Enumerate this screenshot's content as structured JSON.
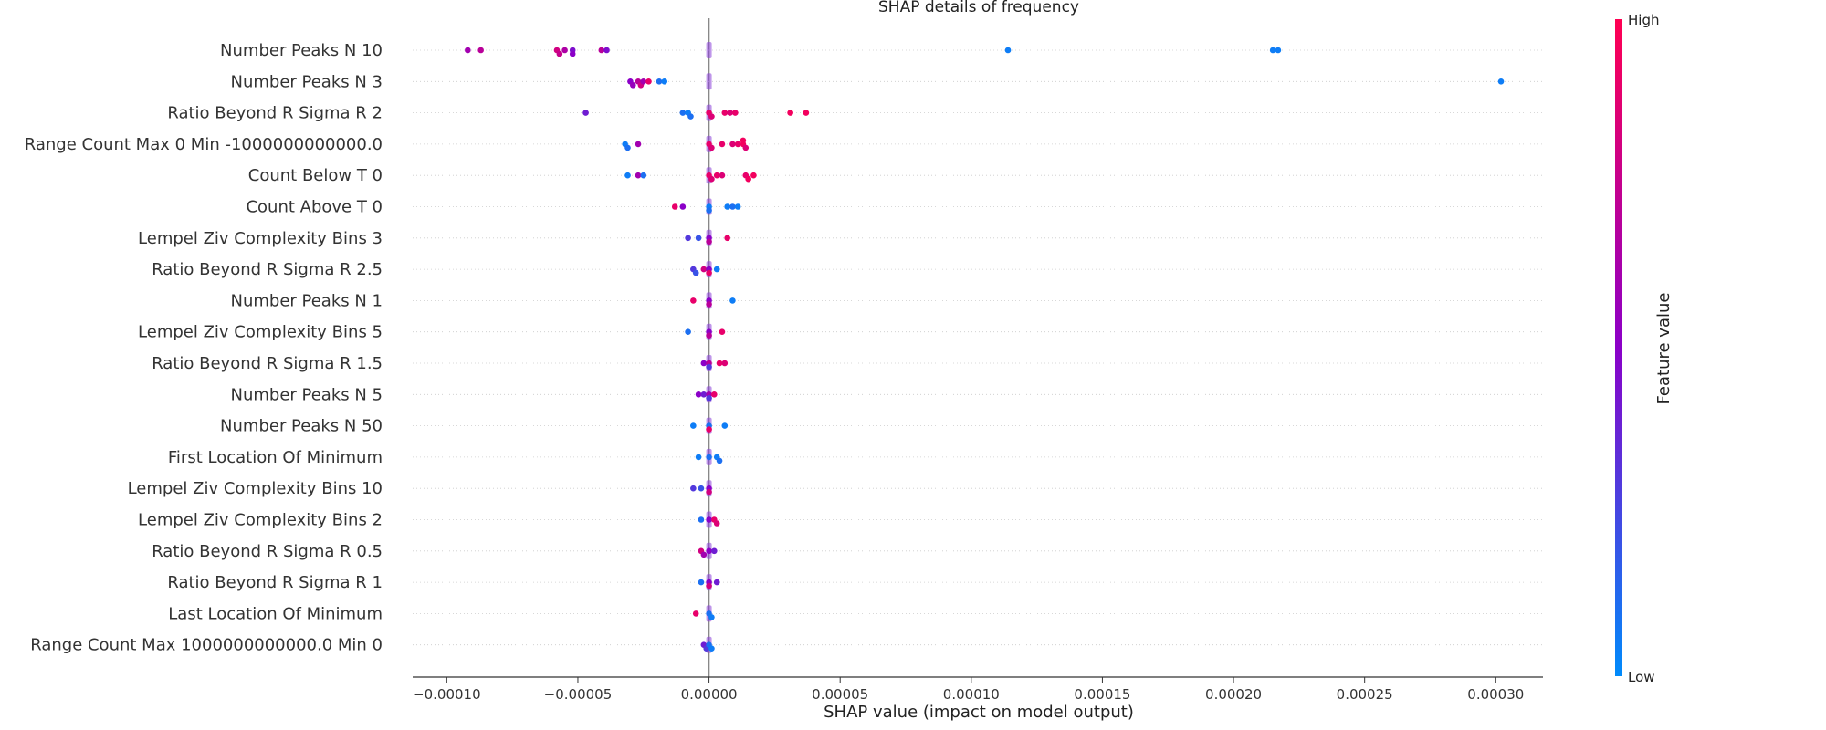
{
  "chart_data": {
    "type": "scatter",
    "title": "SHAP details of frequency",
    "xlabel": "SHAP value (impact on model output)",
    "xlim": [
      -0.000113,
      0.000318
    ],
    "xticks": [
      {
        "value": -0.0001,
        "label": "−0.00010"
      },
      {
        "value": -5e-05,
        "label": "−0.00005"
      },
      {
        "value": 0.0,
        "label": "0.00000"
      },
      {
        "value": 5e-05,
        "label": "0.00005"
      },
      {
        "value": 0.0001,
        "label": "0.00010"
      },
      {
        "value": 0.00015,
        "label": "0.00015"
      },
      {
        "value": 0.0002,
        "label": "0.00020"
      },
      {
        "value": 0.00025,
        "label": "0.00025"
      },
      {
        "value": 0.0003,
        "label": "0.00030"
      }
    ],
    "colorbar": {
      "label": "Feature value",
      "high": "High",
      "low": "Low",
      "colors": [
        "#ff0052",
        "#8b00c8",
        "#008bfb"
      ]
    },
    "features": [
      {
        "name": "Number Peaks  N 10",
        "points": [
          {
            "x": -9.2e-05,
            "v": 0.6
          },
          {
            "x": -8.7e-05,
            "v": 0.7
          },
          {
            "x": -5.8e-05,
            "v": 0.8
          },
          {
            "x": -5.7e-05,
            "v": 0.75
          },
          {
            "x": -5.5e-05,
            "v": 0.65
          },
          {
            "x": -5.2e-05,
            "v": 0.45
          },
          {
            "x": -5.2e-05,
            "v": 0.5
          },
          {
            "x": -4.1e-05,
            "v": 0.7
          },
          {
            "x": -3.9e-05,
            "v": 0.45
          },
          {
            "x": 0.000114,
            "v": 0.05
          },
          {
            "x": 0.000215,
            "v": 0.05
          },
          {
            "x": 0.000217,
            "v": 0.05
          }
        ]
      },
      {
        "name": "Number Peaks  N 3",
        "points": [
          {
            "x": -3e-05,
            "v": 0.5
          },
          {
            "x": -2.9e-05,
            "v": 0.55
          },
          {
            "x": -2.7e-05,
            "v": 0.7
          },
          {
            "x": -2.6e-05,
            "v": 0.8
          },
          {
            "x": -2.5e-05,
            "v": 0.6
          },
          {
            "x": -2.3e-05,
            "v": 0.9
          },
          {
            "x": -1.9e-05,
            "v": 0.1
          },
          {
            "x": -1.7e-05,
            "v": 0.05
          },
          {
            "x": 0.000302,
            "v": 0.05
          }
        ]
      },
      {
        "name": "Ratio Beyond R Sigma  R 2",
        "points": [
          {
            "x": -4.7e-05,
            "v": 0.4
          },
          {
            "x": -1e-05,
            "v": 0.1
          },
          {
            "x": -8e-06,
            "v": 0.05
          },
          {
            "x": -7e-06,
            "v": 0.1
          },
          {
            "x": 0.0,
            "v": 0.9
          },
          {
            "x": 1e-06,
            "v": 0.85
          },
          {
            "x": 6e-06,
            "v": 0.9
          },
          {
            "x": 8e-06,
            "v": 0.85
          },
          {
            "x": 1e-05,
            "v": 0.9
          },
          {
            "x": 3.1e-05,
            "v": 0.95
          },
          {
            "x": 3.7e-05,
            "v": 0.95
          }
        ]
      },
      {
        "name": "Range Count  Max 0  Min -1000000000000.0",
        "points": [
          {
            "x": -3.2e-05,
            "v": 0.05
          },
          {
            "x": -3.1e-05,
            "v": 0.1
          },
          {
            "x": -2.7e-05,
            "v": 0.6
          },
          {
            "x": 0.0,
            "v": 0.9
          },
          {
            "x": 1e-06,
            "v": 0.85
          },
          {
            "x": 5e-06,
            "v": 0.9
          },
          {
            "x": 9e-06,
            "v": 0.85
          },
          {
            "x": 1.1e-05,
            "v": 0.9
          },
          {
            "x": 1.3e-05,
            "v": 0.95
          },
          {
            "x": 1.4e-05,
            "v": 0.85
          },
          {
            "x": 1.3e-05,
            "v": 0.95
          }
        ]
      },
      {
        "name": "Count Below  T 0",
        "points": [
          {
            "x": -3.1e-05,
            "v": 0.05
          },
          {
            "x": -2.7e-05,
            "v": 0.6
          },
          {
            "x": -2.5e-05,
            "v": 0.1
          },
          {
            "x": 0.0,
            "v": 0.9
          },
          {
            "x": 1e-06,
            "v": 0.85
          },
          {
            "x": 3e-06,
            "v": 0.9
          },
          {
            "x": 5e-06,
            "v": 0.85
          },
          {
            "x": 1.4e-05,
            "v": 0.9
          },
          {
            "x": 1.5e-05,
            "v": 0.95
          },
          {
            "x": 1.7e-05,
            "v": 0.95
          }
        ]
      },
      {
        "name": "Count Above  T 0",
        "points": [
          {
            "x": -1.3e-05,
            "v": 0.9
          },
          {
            "x": -1e-05,
            "v": 0.5
          },
          {
            "x": 0.0,
            "v": 0.05
          },
          {
            "x": 0.0,
            "v": 0.1
          },
          {
            "x": 7e-06,
            "v": 0.05
          },
          {
            "x": 9e-06,
            "v": 0.1
          },
          {
            "x": 1.1e-05,
            "v": 0.05
          }
        ]
      },
      {
        "name": "Lempel Ziv Complexity  Bins 3",
        "points": [
          {
            "x": -8e-06,
            "v": 0.3
          },
          {
            "x": -4e-06,
            "v": 0.2
          },
          {
            "x": 0.0,
            "v": 0.5
          },
          {
            "x": 0.0,
            "v": 0.7
          },
          {
            "x": 7e-06,
            "v": 0.9
          }
        ]
      },
      {
        "name": "Ratio Beyond R Sigma  R 2.5",
        "points": [
          {
            "x": -6e-06,
            "v": 0.3
          },
          {
            "x": -5e-06,
            "v": 0.2
          },
          {
            "x": -2e-06,
            "v": 0.8
          },
          {
            "x": 0.0,
            "v": 0.5
          },
          {
            "x": 0.0,
            "v": 0.9
          },
          {
            "x": 3e-06,
            "v": 0.05
          }
        ]
      },
      {
        "name": "Number Peaks  N 1",
        "points": [
          {
            "x": -6e-06,
            "v": 0.9
          },
          {
            "x": 0.0,
            "v": 0.5
          },
          {
            "x": 0.0,
            "v": 0.7
          },
          {
            "x": 9e-06,
            "v": 0.05
          }
        ]
      },
      {
        "name": "Lempel Ziv Complexity  Bins 5",
        "points": [
          {
            "x": -8e-06,
            "v": 0.1
          },
          {
            "x": 0.0,
            "v": 0.5
          },
          {
            "x": 0.0,
            "v": 0.7
          },
          {
            "x": 5e-06,
            "v": 0.9
          }
        ]
      },
      {
        "name": "Ratio Beyond R Sigma  R 1.5",
        "points": [
          {
            "x": -2e-06,
            "v": 0.5
          },
          {
            "x": 0.0,
            "v": 0.7
          },
          {
            "x": 0.0,
            "v": 0.3
          },
          {
            "x": 4e-06,
            "v": 0.9
          },
          {
            "x": 6e-06,
            "v": 0.85
          }
        ]
      },
      {
        "name": "Number Peaks  N 5",
        "points": [
          {
            "x": -4e-06,
            "v": 0.5
          },
          {
            "x": -2e-06,
            "v": 0.4
          },
          {
            "x": 0.0,
            "v": 0.6
          },
          {
            "x": 0.0,
            "v": 0.3
          },
          {
            "x": 2e-06,
            "v": 0.9
          }
        ]
      },
      {
        "name": "Number Peaks  N 50",
        "points": [
          {
            "x": -6e-06,
            "v": 0.05
          },
          {
            "x": 0.0,
            "v": 0.1
          },
          {
            "x": 0.0,
            "v": 0.9
          },
          {
            "x": 6e-06,
            "v": 0.05
          }
        ]
      },
      {
        "name": "First Location Of Minimum",
        "points": [
          {
            "x": -4e-06,
            "v": 0.05
          },
          {
            "x": 0.0,
            "v": 0.1
          },
          {
            "x": 3e-06,
            "v": 0.05
          },
          {
            "x": 4e-06,
            "v": 0.1
          }
        ]
      },
      {
        "name": "Lempel Ziv Complexity  Bins 10",
        "points": [
          {
            "x": -6e-06,
            "v": 0.3
          },
          {
            "x": -3e-06,
            "v": 0.2
          },
          {
            "x": 0.0,
            "v": 0.5
          },
          {
            "x": 0.0,
            "v": 0.8
          }
        ]
      },
      {
        "name": "Lempel Ziv Complexity  Bins 2",
        "points": [
          {
            "x": -3e-06,
            "v": 0.1
          },
          {
            "x": 0.0,
            "v": 0.5
          },
          {
            "x": 2e-06,
            "v": 0.9
          },
          {
            "x": 3e-06,
            "v": 0.85
          }
        ]
      },
      {
        "name": "Ratio Beyond R Sigma  R 0.5",
        "points": [
          {
            "x": -3e-06,
            "v": 0.8
          },
          {
            "x": -2e-06,
            "v": 0.6
          },
          {
            "x": 0.0,
            "v": 0.5
          },
          {
            "x": 2e-06,
            "v": 0.4
          }
        ]
      },
      {
        "name": "Ratio Beyond R Sigma  R 1",
        "points": [
          {
            "x": -3e-06,
            "v": 0.1
          },
          {
            "x": 0.0,
            "v": 0.5
          },
          {
            "x": 0.0,
            "v": 0.8
          },
          {
            "x": 3e-06,
            "v": 0.4
          }
        ]
      },
      {
        "name": "Last Location Of Minimum",
        "points": [
          {
            "x": -5e-06,
            "v": 0.9
          },
          {
            "x": 0.0,
            "v": 0.1
          },
          {
            "x": 1e-06,
            "v": 0.05
          }
        ]
      },
      {
        "name": "Range Count  Max 1000000000000.0  Min 0",
        "points": [
          {
            "x": -2e-06,
            "v": 0.4
          },
          {
            "x": -1e-06,
            "v": 0.3
          },
          {
            "x": 0.0,
            "v": 0.1
          },
          {
            "x": 1e-06,
            "v": 0.05
          }
        ]
      }
    ]
  }
}
